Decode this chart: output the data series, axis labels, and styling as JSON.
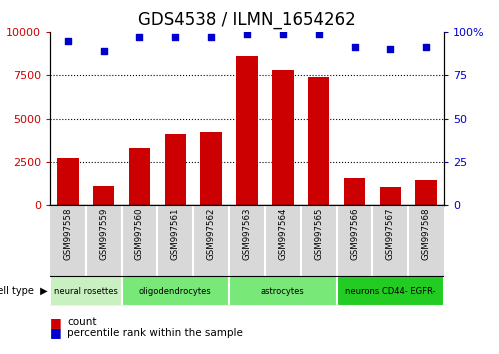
{
  "title": "GDS4538 / ILMN_1654262",
  "samples": [
    "GSM997558",
    "GSM997559",
    "GSM997560",
    "GSM997561",
    "GSM997562",
    "GSM997563",
    "GSM997564",
    "GSM997565",
    "GSM997566",
    "GSM997567",
    "GSM997568"
  ],
  "counts": [
    2700,
    1100,
    3300,
    4100,
    4200,
    8600,
    7800,
    7400,
    1550,
    1050,
    1450
  ],
  "percentile_ranks": [
    95,
    89,
    97,
    97,
    97,
    99,
    99,
    99,
    91,
    90,
    91
  ],
  "cell_groups": [
    {
      "label": "neural rosettes",
      "start": 0,
      "end": 1,
      "color": "#c8f0c0"
    },
    {
      "label": "oligodendrocytes",
      "start": 2,
      "end": 4,
      "color": "#78e878"
    },
    {
      "label": "astrocytes",
      "start": 5,
      "end": 7,
      "color": "#78e878"
    },
    {
      "label": "neurons CD44- EGFR-",
      "start": 8,
      "end": 10,
      "color": "#22cc22"
    }
  ],
  "ylim_left": [
    0,
    10000
  ],
  "ylim_right": [
    0,
    100
  ],
  "yticks_left": [
    0,
    2500,
    5000,
    7500,
    10000
  ],
  "yticks_right": [
    0,
    25,
    50,
    75,
    100
  ],
  "bar_color": "#cc0000",
  "dot_color": "#0000cc",
  "title_fontsize": 12,
  "axis_color_left": "#cc0000",
  "axis_color_right": "#0000cc",
  "sample_box_color": "#d8d8d8",
  "legend_count_color": "#cc0000",
  "legend_dot_color": "#0000cc"
}
